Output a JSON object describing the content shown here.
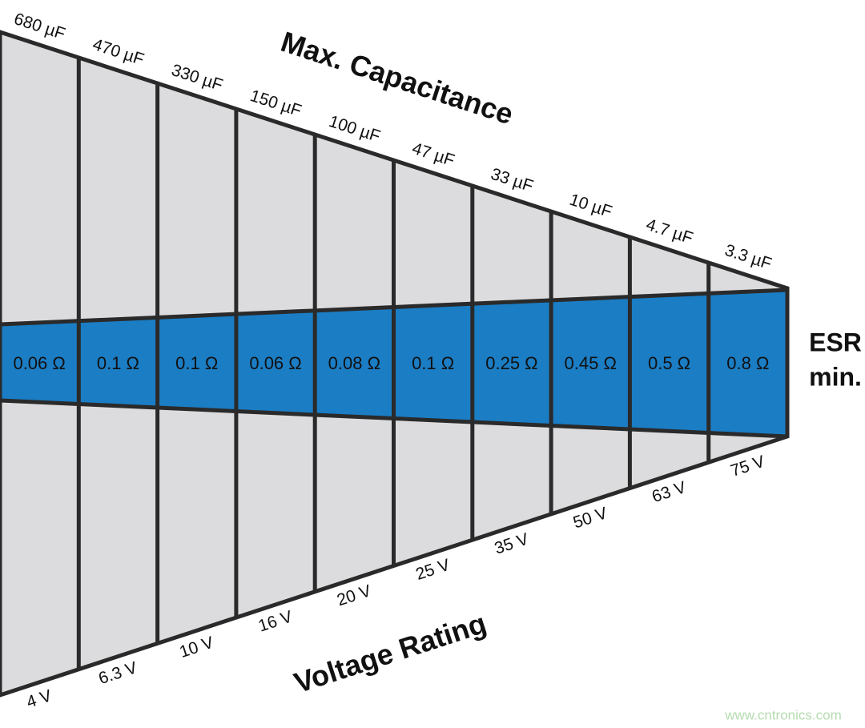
{
  "diagram": {
    "top_title": "Max. Capacitance",
    "bottom_title": "Voltage Rating",
    "side_label": [
      "ESR",
      "min."
    ],
    "columns": [
      {
        "capacitance": "680 µF",
        "esr": "0.06 Ω",
        "voltage": "4 V"
      },
      {
        "capacitance": "470 µF",
        "esr": "0.1 Ω",
        "voltage": "6.3 V"
      },
      {
        "capacitance": "330 µF",
        "esr": "0.1 Ω",
        "voltage": "10 V"
      },
      {
        "capacitance": "150 µF",
        "esr": "0.06 Ω",
        "voltage": "16 V"
      },
      {
        "capacitance": "100 µF",
        "esr": "0.08 Ω",
        "voltage": "20 V"
      },
      {
        "capacitance": "47 µF",
        "esr": "0.1 Ω",
        "voltage": "25 V"
      },
      {
        "capacitance": "33 µF",
        "esr": "0.25 Ω",
        "voltage": "35 V"
      },
      {
        "capacitance": "10 µF",
        "esr": "0.45 Ω",
        "voltage": "50 V"
      },
      {
        "capacitance": "4.7 µF",
        "esr": "0.5 Ω",
        "voltage": "63 V"
      },
      {
        "capacitance": "3.3 µF",
        "esr": "0.8 Ω",
        "voltage": "75 V"
      }
    ],
    "watermark": "www.cntronics.com"
  }
}
